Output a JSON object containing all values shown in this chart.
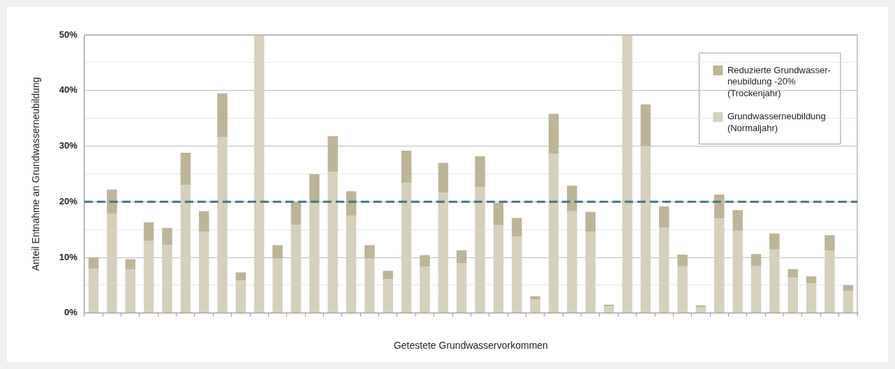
{
  "chart_data": {
    "type": "bar",
    "stacked": true,
    "xlabel": "Getestete Grundwasservorkommen",
    "ylabel": "Anteil Entnahme an Grundwasserneubildung",
    "categories": [
      null,
      null,
      null,
      null,
      null,
      null,
      null,
      null,
      null,
      null,
      null,
      null,
      null,
      null,
      null,
      null,
      null,
      null,
      null,
      null,
      null,
      null,
      null,
      null,
      null,
      null,
      null,
      null,
      null,
      null,
      null,
      null,
      null,
      null,
      null,
      null,
      null,
      null,
      null,
      null,
      null,
      null
    ],
    "series": [
      {
        "name": "Grundwasserneubildung (Normaljahr)",
        "color": "#d6d1bd",
        "values": [
          8.0,
          17.8,
          7.8,
          13.0,
          12.2,
          23.0,
          14.6,
          31.6,
          5.8,
          50,
          9.8,
          15.9,
          20.0,
          25.4,
          17.5,
          9.8,
          6.1,
          23.4,
          8.3,
          21.6,
          9.0,
          22.6,
          15.8,
          13.7,
          2.4,
          28.6,
          18.3,
          14.6,
          1.2,
          50,
          30.0,
          15.4,
          8.4,
          1.1,
          17.0,
          14.8,
          8.5,
          11.4,
          6.3,
          5.3,
          11.2,
          4.0
        ]
      },
      {
        "name": "Reduzierte Grundwasser-neubildung -20% (Trockenjahr)",
        "color": "#bdb597",
        "values": [
          2.0,
          4.4,
          1.9,
          3.3,
          3.1,
          5.8,
          3.7,
          7.9,
          1.5,
          null,
          2.4,
          4.0,
          5.0,
          6.4,
          4.4,
          2.4,
          1.5,
          5.8,
          2.1,
          5.4,
          2.3,
          5.6,
          4.0,
          3.4,
          0.6,
          7.2,
          4.6,
          3.6,
          0.3,
          null,
          7.5,
          3.8,
          2.1,
          0.3,
          4.3,
          3.7,
          2.1,
          2.9,
          1.6,
          1.3,
          2.8,
          1.0
        ]
      }
    ],
    "ylim": [
      0,
      50
    ],
    "yticks": [
      {
        "value": 0,
        "label": "0%"
      },
      {
        "value": 5,
        "label": null
      },
      {
        "value": 10,
        "label": "10%"
      },
      {
        "value": 15,
        "label": null
      },
      {
        "value": 20,
        "label": "20%"
      },
      {
        "value": 25,
        "label": null
      },
      {
        "value": 30,
        "label": "30%"
      },
      {
        "value": 35,
        "label": null
      },
      {
        "value": 40,
        "label": "40%"
      },
      {
        "value": 45,
        "label": null
      },
      {
        "value": 50,
        "label": "50%"
      }
    ],
    "grid": "y",
    "legend": "top right",
    "ref_lines": [
      {
        "axis": "y",
        "value": 20,
        "color": "#3f7585",
        "line_style": "dashed"
      }
    ]
  }
}
